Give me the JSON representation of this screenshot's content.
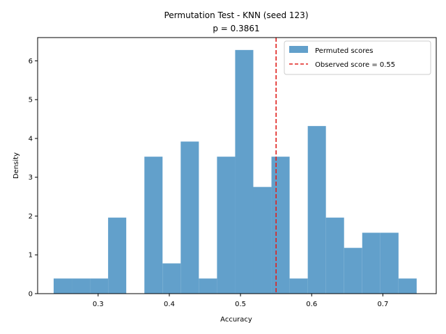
{
  "chart_data": {
    "type": "bar",
    "title": "Permutation Test - KNN (seed 123)",
    "subtitle": "p = 0.3861",
    "xlabel": "Accuracy",
    "ylabel": "Density",
    "xlim": [
      0.215,
      0.775
    ],
    "ylim": [
      0,
      6.6
    ],
    "x_ticks": [
      0.3,
      0.4,
      0.5,
      0.6,
      0.7
    ],
    "x_tick_labels": [
      "0.3",
      "0.4",
      "0.5",
      "0.6",
      "0.7"
    ],
    "y_ticks": [
      0,
      1,
      2,
      3,
      4,
      5,
      6
    ],
    "y_tick_labels": [
      "0",
      "1",
      "2",
      "3",
      "4",
      "5",
      "6"
    ],
    "series": [
      {
        "name": "Permuted scores",
        "color": "#62a0cb",
        "bins": [
          {
            "x0": 0.2375,
            "x1": 0.263,
            "value": 0.39
          },
          {
            "x0": 0.263,
            "x1": 0.2885,
            "value": 0.39
          },
          {
            "x0": 0.2885,
            "x1": 0.314,
            "value": 0.39
          },
          {
            "x0": 0.314,
            "x1": 0.3395,
            "value": 1.96
          },
          {
            "x0": 0.3395,
            "x1": 0.365,
            "value": 0
          },
          {
            "x0": 0.365,
            "x1": 0.3905,
            "value": 3.53
          },
          {
            "x0": 0.3905,
            "x1": 0.416,
            "value": 0.78
          },
          {
            "x0": 0.416,
            "x1": 0.4415,
            "value": 3.92
          },
          {
            "x0": 0.4415,
            "x1": 0.467,
            "value": 0.39
          },
          {
            "x0": 0.467,
            "x1": 0.4925,
            "value": 3.53
          },
          {
            "x0": 0.4925,
            "x1": 0.518,
            "value": 6.28
          },
          {
            "x0": 0.518,
            "x1": 0.5435,
            "value": 2.75
          },
          {
            "x0": 0.5435,
            "x1": 0.569,
            "value": 3.53
          },
          {
            "x0": 0.569,
            "x1": 0.5945,
            "value": 0.39
          },
          {
            "x0": 0.5945,
            "x1": 0.62,
            "value": 4.32
          },
          {
            "x0": 0.62,
            "x1": 0.6455,
            "value": 1.96
          },
          {
            "x0": 0.6455,
            "x1": 0.671,
            "value": 1.18
          },
          {
            "x0": 0.671,
            "x1": 0.6965,
            "value": 1.57
          },
          {
            "x0": 0.6965,
            "x1": 0.722,
            "value": 1.57
          },
          {
            "x0": 0.722,
            "x1": 0.7475,
            "value": 0.39
          }
        ]
      }
    ],
    "observed": {
      "name": "Observed score = 0.55",
      "value": 0.55,
      "color": "#e0211d",
      "style": "dashed"
    },
    "legend_position": "top-right",
    "grid": false
  }
}
